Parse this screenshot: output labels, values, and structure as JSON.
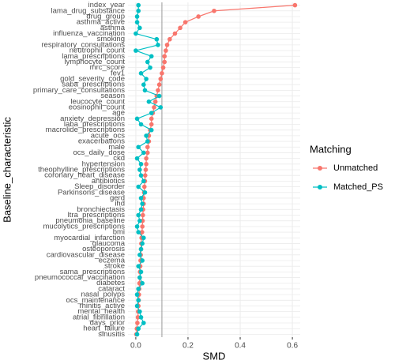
{
  "chart_data": {
    "type": "dot_line",
    "x_label": "SMD",
    "y_label": "Baseline_characteristic",
    "legend_title": "Matching",
    "legend_position": "right",
    "grid": true,
    "vline": 0.1,
    "xlim": [
      -0.03,
      0.63
    ],
    "xticks": [
      {
        "value": 0,
        "label": "0.0"
      },
      0.2,
      0.4,
      0.6
    ],
    "categories": [
      "index_year",
      "lama_drug_substance",
      "drug_group",
      "asthma_active",
      "asthma",
      "influenza_vaccination",
      "smoking",
      "respiratory_consultations",
      "neutrophil_count",
      "lama_prescriptions",
      "lymphocyte_count",
      "mrc_score",
      "fev1",
      "gold_severity_code",
      "saba_prescriptions",
      "primary_care_consultations",
      "season",
      "leucocyte_count",
      "eosinophil_count",
      "age",
      "anxiety_depression",
      "laba_prescriptions",
      "macrolide_prescriptions",
      "acute_ocs",
      "exacerbations",
      "male",
      "ocs_daily_dose",
      "ckd",
      "hypertension",
      "theophylline_prescriptions",
      "coronary_heart_disease",
      "antibiotics",
      "Sleep_disorder",
      "Parkinsons_disease",
      "gerd",
      "ihd",
      "bronchiectasis",
      "ltra_prescriptions",
      "pneumonia_baseline",
      "mucolytics_prescriptions",
      "bmi",
      "myocardial_infarction",
      "glaucoma",
      "osteoporosis",
      "cardiovascular_disease",
      "eczema",
      "stroke",
      "sama_prescriptions",
      "pneumococcal_vaccination",
      "diabetes",
      "cataract",
      "nasal_polyps",
      "ocs_maintenance",
      "rhinitis_active",
      "mental_health",
      "atrial_fibrillation",
      "days_prior",
      "heart_failure",
      "sinusitis"
    ],
    "series": [
      {
        "name": "Unmatched",
        "color": "#F8766D",
        "values": [
          0.61,
          0.3,
          0.24,
          0.19,
          0.17,
          0.15,
          0.13,
          0.12,
          0.115,
          0.11,
          0.11,
          0.105,
          0.1,
          0.095,
          0.09,
          0.085,
          0.08,
          0.075,
          0.07,
          0.065,
          0.06,
          0.06,
          0.055,
          0.05,
          0.05,
          0.045,
          0.045,
          0.04,
          0.04,
          0.038,
          0.036,
          0.035,
          0.033,
          0.032,
          0.03,
          0.03,
          0.028,
          0.027,
          0.026,
          0.025,
          0.024,
          0.022,
          0.021,
          0.02,
          0.019,
          0.018,
          0.017,
          0.016,
          0.015,
          0.014,
          0.013,
          0.012,
          0.011,
          0.01,
          0.009,
          0.008,
          0.006,
          0.004,
          0.002
        ]
      },
      {
        "name": "Matched_PS",
        "color": "#00BFC4",
        "values": [
          0.01,
          0.01,
          0.005,
          0.005,
          0.015,
          0.0,
          0.08,
          0.085,
          0.0,
          0.06,
          0.045,
          0.055,
          0.02,
          0.04,
          0.03,
          0.035,
          0.09,
          0.05,
          0.095,
          0.06,
          0.005,
          0.02,
          0.06,
          0.04,
          0.045,
          0.01,
          0.03,
          0.005,
          0.02,
          0.015,
          0.02,
          0.03,
          0.01,
          0.035,
          0.02,
          0.025,
          0.02,
          0.01,
          0.015,
          0.005,
          0.01,
          0.03,
          0.025,
          0.02,
          0.015,
          0.025,
          0.01,
          0.02,
          0.015,
          0.025,
          0.01,
          0.005,
          0.01,
          0.005,
          0.015,
          0.02,
          0.03,
          0.01,
          0.005
        ]
      }
    ]
  }
}
